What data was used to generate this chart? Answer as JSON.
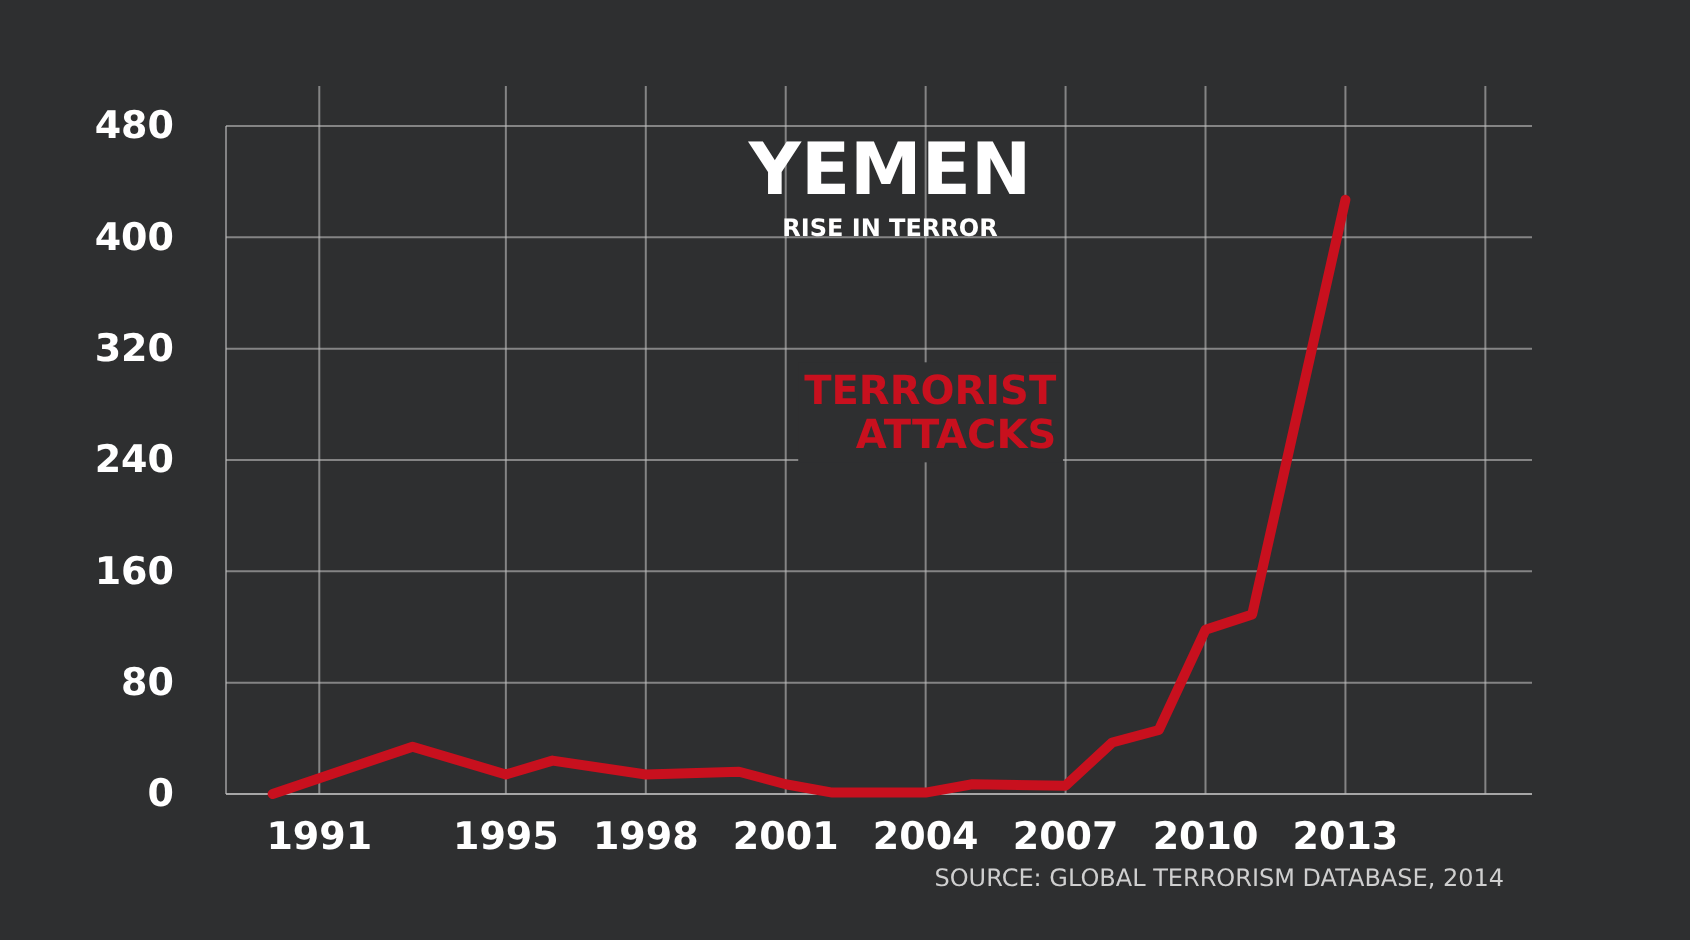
{
  "chart_data": {
    "type": "line",
    "title": "YEMEN",
    "subtitle": "RISE IN TERROR",
    "x": [
      1990,
      1993,
      1995,
      1996,
      1998,
      2000,
      2001,
      2002,
      2004,
      2005,
      2007,
      2008,
      2009,
      2010,
      2011,
      2013
    ],
    "series": [
      {
        "name": "TERRORIST ATTACKS",
        "color": "#c8101e",
        "values": [
          0,
          34,
          14,
          24,
          14,
          16,
          7,
          1,
          1,
          7,
          6,
          37,
          46,
          118,
          129,
          427
        ]
      }
    ],
    "xlim": [
      1989,
      2017
    ],
    "xticks": [
      1991,
      1995,
      1998,
      2001,
      2004,
      2007,
      2010,
      2013,
      {
        "value": 2016,
        "label": null
      }
    ],
    "ylim": [
      0,
      480
    ],
    "yticks": [
      0,
      80,
      160,
      240,
      320,
      400,
      480
    ],
    "grid": true,
    "marker": "none",
    "line_style": "solid",
    "annotations": [
      "SOURCE:  GLOBAL TERRORISM DATABASE, 2014"
    ]
  }
}
